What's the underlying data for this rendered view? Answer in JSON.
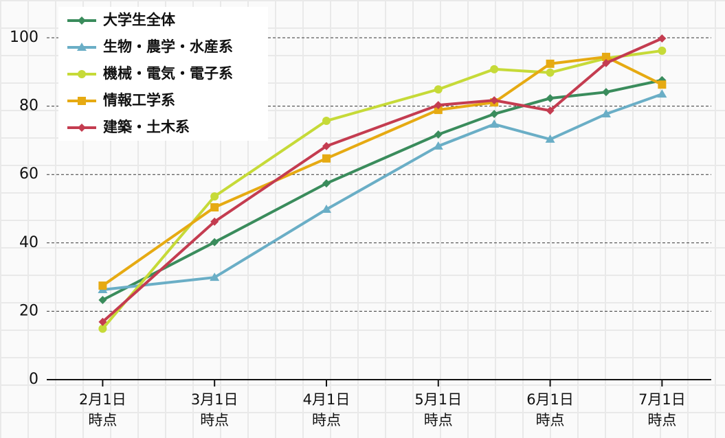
{
  "chart_data": {
    "type": "line",
    "x": [
      2,
      3,
      4,
      5,
      5.5,
      6,
      6.5,
      7
    ],
    "xlim": [
      1.5,
      7.44
    ],
    "xticks": [
      {
        "value": 2,
        "label": "2月1日\n時点"
      },
      {
        "value": 3,
        "label": "3月1日\n時点"
      },
      {
        "value": 4,
        "label": "4月1日\n時点"
      },
      {
        "value": 5,
        "label": "5月1日\n時点"
      },
      {
        "value": 6,
        "label": "6月1日\n時点"
      },
      {
        "value": 7,
        "label": "7月1日\n時点"
      }
    ],
    "ylim": [
      0,
      100
    ],
    "yticks": [
      0,
      20,
      40,
      60,
      80,
      100
    ],
    "grid": true,
    "legend": "upper-left",
    "series": [
      {
        "name": "大学生全体",
        "color": "#3a8c5c",
        "marker": "diamond",
        "values": [
          23.3,
          40.2,
          57.4,
          71.7,
          77.7,
          82.3,
          84.1,
          87.6
        ]
      },
      {
        "name": "生物・農学・水産系",
        "color": "#6aaec6",
        "marker": "triangle",
        "values": [
          26.3,
          29.9,
          49.8,
          68.3,
          74.7,
          70.3,
          77.7,
          83.5
        ]
      },
      {
        "name": "機械・電気・電子系",
        "color": "#c6da38",
        "marker": "circle",
        "values": [
          14.9,
          53.6,
          75.7,
          84.9,
          90.8,
          89.8,
          94.0,
          96.2
        ]
      },
      {
        "name": "情報工学系",
        "color": "#e6aa12",
        "marker": "square",
        "values": [
          27.5,
          50.4,
          64.7,
          78.9,
          81.1,
          92.4,
          94.4,
          86.3
        ]
      },
      {
        "name": "建築・土木系",
        "color": "#c43c50",
        "marker": "diamond",
        "values": [
          16.9,
          46.2,
          68.3,
          80.3,
          81.7,
          78.7,
          92.6,
          99.8
        ]
      }
    ]
  }
}
